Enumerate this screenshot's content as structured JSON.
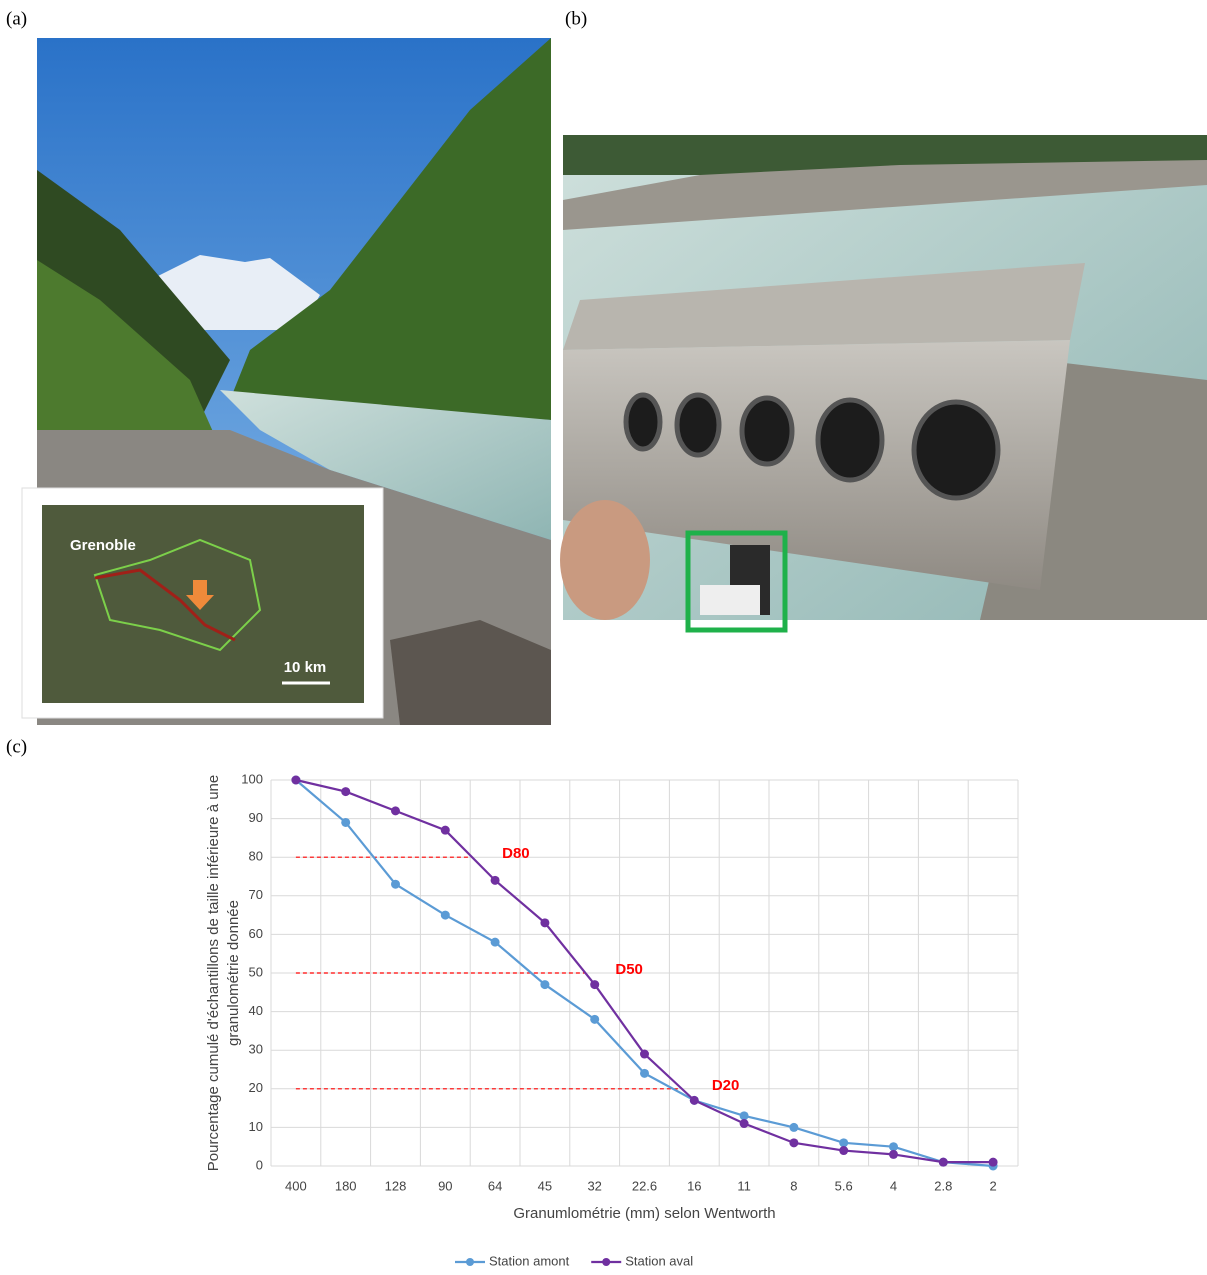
{
  "panels": {
    "a": {
      "label": "(a)",
      "inset": {
        "city": "Grenoble",
        "scale": "10 km"
      }
    },
    "b": {
      "label": "(b)"
    },
    "c": {
      "label": "(c)"
    }
  },
  "chart_data": {
    "type": "line",
    "xlabel": "Granumlométrie (mm) selon Wentworth",
    "ylabel": [
      "Pourcentage cumulé d'échantillons de taille inférieure à une",
      "granulométrie donnée"
    ],
    "categories": [
      "400",
      "180",
      "128",
      "90",
      "64",
      "45",
      "32",
      "22.6",
      "16",
      "11",
      "8",
      "5.6",
      "4",
      "2.8",
      "2"
    ],
    "series": [
      {
        "name": "Station amont",
        "color": "#5b9bd5",
        "values": [
          100,
          89,
          73,
          65,
          58,
          47,
          38,
          24,
          17,
          13,
          10,
          6,
          5,
          1,
          0
        ]
      },
      {
        "name": "Station aval",
        "color": "#7030a0",
        "values": [
          100,
          97,
          92,
          87,
          74,
          63,
          47,
          29,
          17,
          11,
          6,
          4,
          3,
          1,
          1
        ]
      }
    ],
    "ylim": [
      0,
      100
    ],
    "yticks": [
      0,
      10,
      20,
      30,
      40,
      50,
      60,
      70,
      80,
      90,
      100
    ],
    "grid": true,
    "legend": "bottom",
    "annotations": [
      {
        "label": "D80",
        "value": 80
      },
      {
        "label": "D50",
        "value": 50
      },
      {
        "label": "D20",
        "value": 20
      }
    ],
    "annotation_color": "#ff0000"
  }
}
